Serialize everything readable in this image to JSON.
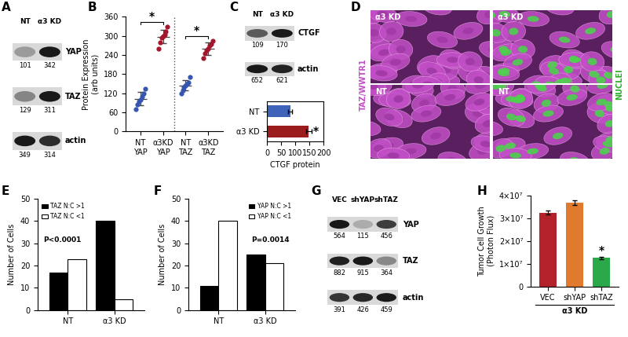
{
  "chart_data": [
    {
      "panel": "B",
      "type": "scatter",
      "categories": [
        "NT\nYAP",
        "α3KD\nYAP",
        "NT\nTAZ",
        "α3KD\nTAZ"
      ],
      "values": [
        [
          70,
          85,
          95,
          100,
          110,
          120,
          135
        ],
        [
          260,
          280,
          295,
          300,
          305,
          315,
          330
        ],
        [
          120,
          130,
          140,
          145,
          150,
          155,
          170
        ],
        [
          230,
          245,
          255,
          260,
          270,
          275,
          285
        ]
      ],
      "means": [
        102,
        298,
        144,
        260
      ],
      "sd": [
        21,
        22,
        16,
        19
      ],
      "colors": [
        "#3556b0",
        "#a3162b",
        "#3556b0",
        "#a3162b"
      ],
      "ylabel": "Protein Expression\n(arb units)",
      "ylim": [
        0,
        360
      ],
      "yticks": [
        0,
        60,
        120,
        180,
        240,
        300,
        360
      ],
      "annotations": [
        {
          "text": "*",
          "categories": [
            "NT\nYAP",
            "α3KD\nYAP"
          ]
        },
        {
          "text": "*",
          "categories": [
            "NT\nTAZ",
            "α3KD\nTAZ"
          ]
        }
      ]
    },
    {
      "type": "bar",
      "orientation": "horizontal",
      "categories": [
        "NT",
        "α3 KD"
      ],
      "values": [
        82,
        148
      ],
      "errors": [
        8,
        9
      ],
      "colors": [
        "#3f63b8",
        "#9b1c1c"
      ],
      "xlabel": "CTGF protein",
      "xlim": [
        0,
        200
      ],
      "xticks": [
        0,
        50,
        100,
        150,
        200
      ],
      "annotations": [
        {
          "text": "*",
          "category": "α3 KD"
        }
      ]
    },
    {
      "panel": "E",
      "type": "bar",
      "categories": [
        "NT",
        "α3 KD"
      ],
      "series": [
        {
          "name": "TAZ N:C >1",
          "color": "#000000",
          "values": [
            17,
            40
          ]
        },
        {
          "name": "TAZ N:C <1",
          "color": "#ffffff",
          "values": [
            23,
            5
          ]
        }
      ],
      "ylabel": "Number of Cells",
      "ylim": [
        0,
        50
      ],
      "yticks": [
        0,
        10,
        20,
        30,
        40,
        50
      ],
      "legend": "upper left",
      "annotations": [
        {
          "text": "P<0.0001"
        }
      ]
    },
    {
      "panel": "F",
      "type": "bar",
      "categories": [
        "NT",
        "α3 KD"
      ],
      "series": [
        {
          "name": "YAP N:C >1",
          "color": "#000000",
          "values": [
            11,
            25
          ]
        },
        {
          "name": "YAP N:C <1",
          "color": "#ffffff",
          "values": [
            40,
            21
          ]
        }
      ],
      "ylabel": "Number of Cells",
      "ylim": [
        0,
        50
      ],
      "yticks": [
        0,
        10,
        20,
        30,
        40,
        50
      ],
      "legend": "upper right",
      "annotations": [
        {
          "text": "P=0.0014"
        }
      ]
    },
    {
      "panel": "H",
      "type": "bar",
      "categories": [
        "VEC",
        "shYAP",
        "shTAZ"
      ],
      "values": [
        32500000,
        36800000,
        12500000
      ],
      "errors": [
        1000000,
        1100000,
        500000
      ],
      "colors": [
        "#b3222b",
        "#e07a2e",
        "#2aa84a"
      ],
      "ylabel": "Tumor Cell Growth\n(Photon Flux)",
      "group_label": "α3 KD",
      "ylim": [
        0,
        40000000
      ],
      "yticks": [
        0,
        {
          "value": 10000000,
          "label": "1×10⁷"
        },
        {
          "value": 20000000,
          "label": "2×10⁷"
        },
        {
          "value": 30000000,
          "label": "3×10⁷"
        },
        {
          "value": 40000000,
          "label": "4×10⁷"
        }
      ],
      "annotations": [
        {
          "text": "*",
          "category": "shTAZ"
        }
      ]
    }
  ],
  "blots": [
    {
      "panel": "A",
      "lanes": [
        "NT",
        "α3 KD"
      ],
      "rows": [
        {
          "name": "YAP",
          "values": [
            101,
            342
          ]
        },
        {
          "name": "TAZ",
          "values": [
            129,
            311
          ]
        },
        {
          "name": "actin",
          "values": [
            349,
            314
          ]
        }
      ]
    },
    {
      "panel": "C",
      "lanes": [
        "NT",
        "α3 KD"
      ],
      "rows": [
        {
          "name": "CTGF",
          "values": [
            109,
            170
          ]
        },
        {
          "name": "actin",
          "values": [
            652,
            621
          ]
        }
      ]
    },
    {
      "panel": "G",
      "lanes": [
        "VEC",
        "shYAP",
        "shTAZ"
      ],
      "rows": [
        {
          "name": "YAP",
          "values": [
            564,
            115,
            456
          ]
        },
        {
          "name": "TAZ",
          "values": [
            882,
            915,
            364
          ]
        },
        {
          "name": "actin",
          "values": [
            391,
            426,
            459
          ]
        }
      ]
    }
  ],
  "micrograph": {
    "panel": "D",
    "channel_labels": [
      "TAZ/WWTR1",
      "NUCLEI"
    ],
    "panels": [
      {
        "label": "α3 KD",
        "channels": [
          "TAZ/WWTR1"
        ]
      },
      {
        "label": "α3 KD",
        "channels": [
          "TAZ/WWTR1",
          "NUCLEI"
        ]
      },
      {
        "label": "NT",
        "channels": [
          "TAZ/WWTR1"
        ]
      },
      {
        "label": "NT",
        "channels": [
          "TAZ/WWTR1",
          "NUCLEI"
        ]
      }
    ]
  }
}
